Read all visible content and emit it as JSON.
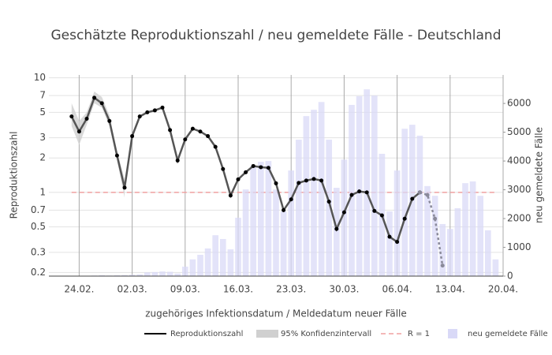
{
  "chart_data": {
    "type": "line",
    "title": "Geschätzte Reproduktionszahl / neu gemeldete Fälle - Deutschland",
    "xlabel": "zugehöriges Infektionsdatum / Meldedatum neuer Fälle",
    "ylabel": "Reproduktionszahl",
    "y2label": "neu gemeldete Fälle",
    "x": [
      "23.02.",
      "24.02.",
      "25.02.",
      "26.02.",
      "27.02.",
      "28.02.",
      "29.02.",
      "01.03.",
      "02.03.",
      "03.03.",
      "04.03.",
      "05.03.",
      "06.03.",
      "07.03.",
      "08.03.",
      "09.03.",
      "10.03.",
      "11.03.",
      "12.03.",
      "13.03.",
      "14.03.",
      "15.03.",
      "16.03.",
      "17.03.",
      "18.03.",
      "19.03.",
      "20.03.",
      "21.03.",
      "22.03.",
      "23.03.",
      "24.03.",
      "25.03.",
      "26.03.",
      "27.03.",
      "28.03.",
      "29.03.",
      "30.03.",
      "31.03.",
      "01.04.",
      "02.04.",
      "03.04.",
      "04.04.",
      "05.04.",
      "06.04.",
      "07.04.",
      "08.04.",
      "09.04.",
      "10.04.",
      "11.04.",
      "12.04.",
      "13.04.",
      "14.04.",
      "15.04.",
      "16.04.",
      "17.04.",
      "18.04.",
      "19.04."
    ],
    "xlim": [
      "20.02.",
      "20.04."
    ],
    "xticks": [
      "24.02.",
      "02.03.",
      "09.03.",
      "16.03.",
      "23.03.",
      "30.03.",
      "06.04.",
      "13.04.",
      "20.04."
    ],
    "ylim": [
      0.186,
      10.6
    ],
    "log_y": true,
    "yticks": [
      0.2,
      0.3,
      0.5,
      0.7,
      1,
      2,
      3,
      5,
      7,
      10
    ],
    "y2lim": [
      0,
      6990
    ],
    "y2ticks": [
      0,
      1000,
      2000,
      3000,
      4000,
      5000,
      6000
    ],
    "grid": true,
    "legend": "bottom",
    "series": [
      {
        "name": "Reproduktionszahl",
        "color": "#555555",
        "marker_color": "#000000",
        "values": [
          4.6,
          3.4,
          4.4,
          6.7,
          6.0,
          4.2,
          2.1,
          1.1,
          3.1,
          4.6,
          5.0,
          5.2,
          5.5,
          3.5,
          1.9,
          2.9,
          3.6,
          3.4,
          3.1,
          2.5,
          1.6,
          0.94,
          1.3,
          1.5,
          1.7,
          1.66,
          1.64,
          1.2,
          0.7,
          0.87,
          1.21,
          1.27,
          1.31,
          1.27,
          0.83,
          0.48,
          0.67,
          0.95,
          1.02,
          1.0,
          0.69,
          0.63,
          0.41,
          0.37,
          0.59,
          0.88,
          1.0,
          null,
          null,
          null,
          null,
          null,
          null,
          null,
          null,
          null,
          null
        ]
      },
      {
        "color": "#8a8a9a",
        "dash": true,
        "values": [
          null,
          null,
          null,
          null,
          null,
          null,
          null,
          null,
          null,
          null,
          null,
          null,
          null,
          null,
          null,
          null,
          null,
          null,
          null,
          null,
          null,
          null,
          null,
          null,
          null,
          null,
          null,
          null,
          null,
          null,
          null,
          null,
          null,
          null,
          null,
          null,
          null,
          null,
          null,
          null,
          null,
          null,
          null,
          null,
          null,
          null,
          1.0,
          0.95,
          0.59,
          0.23,
          null,
          null,
          null,
          null,
          null,
          null,
          null
        ]
      },
      {
        "name": "neu gemeldete Fälle",
        "type": "bar",
        "axis": "y2",
        "color": "#d9d9f7",
        "values": [
          0,
          10,
          10,
          20,
          30,
          20,
          30,
          40,
          50,
          60,
          130,
          140,
          160,
          150,
          90,
          330,
          580,
          740,
          960,
          1420,
          1290,
          930,
          2030,
          3010,
          3840,
          3970,
          4000,
          3010,
          2250,
          3670,
          4740,
          5560,
          5780,
          6050,
          4740,
          3070,
          4050,
          5950,
          6250,
          6490,
          6270,
          4250,
          2250,
          3670,
          5120,
          5260,
          4880,
          3130,
          2790,
          1810,
          1640,
          2360,
          3230,
          3290,
          2790,
          1590,
          580
        ]
      }
    ],
    "band": {
      "name": "95% Konfidenzintervall",
      "color": "#d0d0d0",
      "lower": [
        3.8,
        2.6,
        3.9,
        6.0,
        5.5,
        3.8,
        1.9,
        0.9,
        null,
        null,
        null,
        null,
        null,
        null,
        null,
        null,
        null,
        null,
        null,
        null,
        null,
        null,
        null,
        null,
        null,
        null,
        null,
        null,
        null,
        null,
        null,
        null,
        null,
        null,
        null,
        null,
        null,
        null,
        null,
        null,
        null,
        null,
        null,
        null,
        null,
        null,
        null,
        null,
        null,
        null,
        null,
        null,
        null,
        null,
        null,
        null,
        null
      ],
      "upper": [
        6.0,
        4.2,
        5.0,
        7.6,
        6.8,
        4.7,
        2.3,
        1.3,
        null,
        null,
        null,
        null,
        null,
        null,
        null,
        null,
        null,
        null,
        null,
        null,
        null,
        null,
        null,
        null,
        null,
        null,
        null,
        null,
        null,
        null,
        null,
        null,
        null,
        null,
        null,
        null,
        null,
        null,
        null,
        null,
        null,
        null,
        null,
        null,
        null,
        null,
        null,
        null,
        null,
        null,
        null,
        null,
        null,
        null,
        null,
        null,
        null
      ]
    },
    "reference_line": {
      "value": 1,
      "name": "R = 1",
      "color": "#f0a0a0"
    }
  }
}
